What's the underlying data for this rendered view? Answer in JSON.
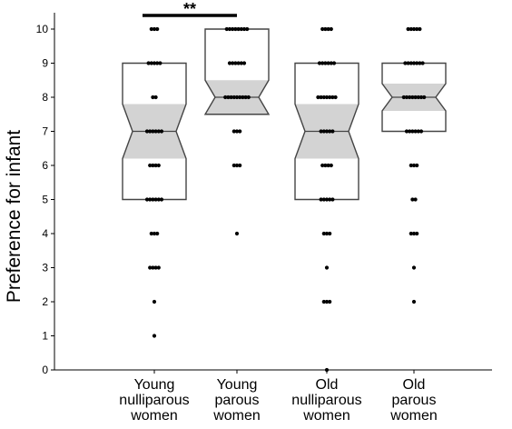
{
  "chart_data": {
    "type": "box",
    "ylabel": "Preference for infant",
    "xlabel": "",
    "title": "",
    "ylim": [
      0,
      10.5
    ],
    "yticks": [
      0,
      1,
      2,
      3,
      4,
      5,
      6,
      7,
      8,
      9,
      10
    ],
    "categories": [
      [
        "Young",
        "nulliparous",
        "women"
      ],
      [
        "Young",
        "parous",
        "women"
      ],
      [
        "Old",
        "nulliparous",
        "women"
      ],
      [
        "Old",
        "parous",
        "women"
      ]
    ],
    "boxes": [
      {
        "q1": 5,
        "median": 7,
        "q3": 9,
        "notch_low": 6.2,
        "notch_high": 7.8
      },
      {
        "q1": 7.5,
        "median": 8,
        "q3": 10,
        "notch_low": 7.5,
        "notch_high": 8.5
      },
      {
        "q1": 5,
        "median": 7,
        "q3": 9,
        "notch_low": 6.2,
        "notch_high": 7.8
      },
      {
        "q1": 7,
        "median": 8,
        "q3": 9,
        "notch_low": 7.6,
        "notch_high": 8.4
      }
    ],
    "points": [
      [
        [
          10,
          3
        ],
        [
          9,
          5
        ],
        [
          8,
          2
        ],
        [
          7,
          6
        ],
        [
          6,
          4
        ],
        [
          5,
          6
        ],
        [
          4,
          3
        ],
        [
          3,
          4
        ],
        [
          2,
          1
        ],
        [
          1,
          1
        ]
      ],
      [
        [
          10,
          8
        ],
        [
          9,
          6
        ],
        [
          8,
          9
        ],
        [
          7,
          3
        ],
        [
          6,
          3
        ],
        [
          4,
          1
        ]
      ],
      [
        [
          10,
          4
        ],
        [
          9,
          6
        ],
        [
          8,
          7
        ],
        [
          7,
          5
        ],
        [
          6,
          4
        ],
        [
          5,
          5
        ],
        [
          4,
          3
        ],
        [
          3,
          1
        ],
        [
          2,
          3
        ],
        [
          0,
          1
        ]
      ],
      [
        [
          10,
          5
        ],
        [
          9,
          7
        ],
        [
          8,
          8
        ],
        [
          7,
          6
        ],
        [
          6,
          3
        ],
        [
          5,
          2
        ],
        [
          4,
          3
        ],
        [
          3,
          1
        ],
        [
          2,
          1
        ]
      ]
    ],
    "significance": {
      "from": 0,
      "to": 1,
      "label": "**"
    },
    "colors": {
      "box_edge": "#444444",
      "notch_fill": "#d3d3d3",
      "points": "#000000",
      "axis": "#000000"
    }
  }
}
